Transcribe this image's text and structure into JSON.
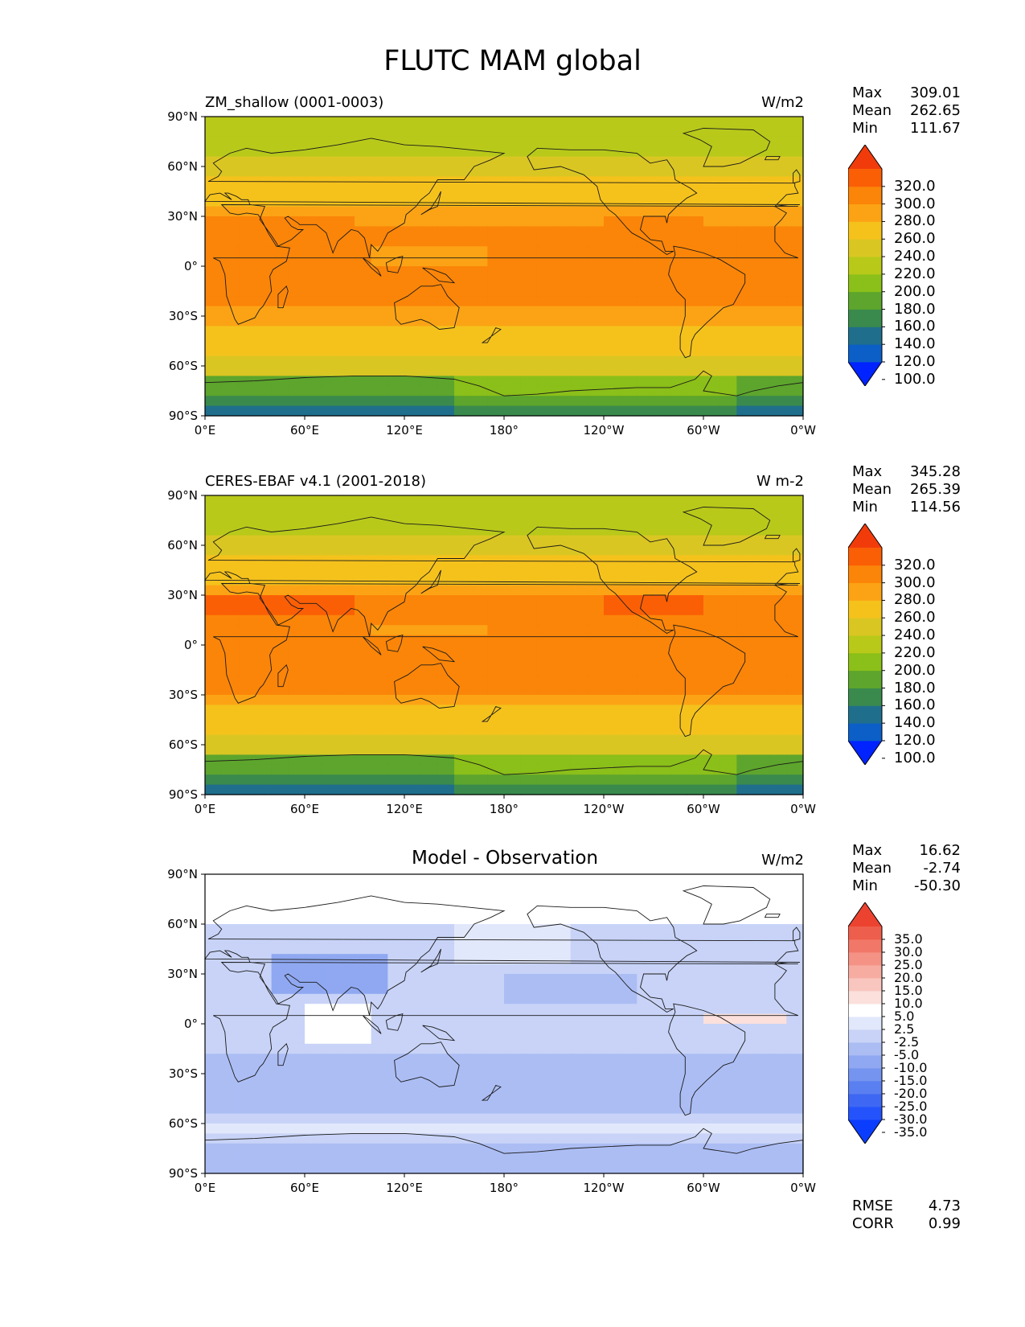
{
  "figure_title": "FLUTC MAM global",
  "axes": {
    "lat_ticks": [
      "90°N",
      "60°N",
      "30°N",
      "0°",
      "30°S",
      "60°S",
      "90°S"
    ],
    "lon_ticks": [
      "0°E",
      "60°E",
      "120°E",
      "180°",
      "120°W",
      "60°W",
      "0°W"
    ]
  },
  "panels": [
    {
      "title": "ZM_shallow (0001-0003)",
      "units": "W/m2",
      "stats": [
        {
          "label": "Max",
          "value": "309.01"
        },
        {
          "label": "Mean",
          "value": "262.65"
        },
        {
          "label": "Min",
          "value": "111.67"
        }
      ],
      "colorbar": {
        "labels": [
          "320.0",
          "300.0",
          "280.0",
          "260.0",
          "240.0",
          "220.0",
          "200.0",
          "180.0",
          "160.0",
          "140.0",
          "120.0",
          "100.0"
        ],
        "colors": [
          "#0023ff",
          "#0b5fc6",
          "#1f6f8c",
          "#3a8a4e",
          "#5da52c",
          "#8bbf19",
          "#b8c91a",
          "#dac623",
          "#f5c21c",
          "#fba315",
          "#fb8508",
          "#fa5f06",
          "#f23b0b"
        ],
        "extend": "both"
      },
      "field": "absolute"
    },
    {
      "title": "CERES-EBAF v4.1 (2001-2018)",
      "units": "W m-2",
      "stats": [
        {
          "label": "Max",
          "value": "345.28"
        },
        {
          "label": "Mean",
          "value": "265.39"
        },
        {
          "label": "Min",
          "value": "114.56"
        }
      ],
      "colorbar": {
        "labels": [
          "320.0",
          "300.0",
          "280.0",
          "260.0",
          "240.0",
          "220.0",
          "200.0",
          "180.0",
          "160.0",
          "140.0",
          "120.0",
          "100.0"
        ],
        "colors": [
          "#0023ff",
          "#0b5fc6",
          "#1f6f8c",
          "#3a8a4e",
          "#5da52c",
          "#8bbf19",
          "#b8c91a",
          "#dac623",
          "#f5c21c",
          "#fba315",
          "#fb8508",
          "#fa5f06",
          "#f23b0b"
        ],
        "extend": "both"
      },
      "field": "absolute"
    },
    {
      "title": "Model - Observation",
      "units": "W/m2",
      "stats": [
        {
          "label": "Max",
          "value": "16.62"
        },
        {
          "label": "Mean",
          "value": "-2.74"
        },
        {
          "label": "Min",
          "value": "-50.30"
        }
      ],
      "extra_stats": [
        {
          "label": "RMSE",
          "value": "4.73"
        },
        {
          "label": "CORR",
          "value": "0.99"
        }
      ],
      "colorbar": {
        "labels": [
          "35.0",
          "30.0",
          "25.0",
          "20.0",
          "15.0",
          "10.0",
          "5.0",
          "2.5",
          "-2.5",
          "-5.0",
          "-10.0",
          "-15.0",
          "-20.0",
          "-25.0",
          "-30.0",
          "-35.0"
        ],
        "colors": [
          "#0b3dff",
          "#2453fb",
          "#3e68f3",
          "#5a7ff0",
          "#7594ef",
          "#8fa8f1",
          "#acbdf4",
          "#c8d3f7",
          "#e2e8fb",
          "#ffffff",
          "#fbe0dc",
          "#f9c6bf",
          "#f7aca2",
          "#f49285",
          "#f17868",
          "#ee5e4c",
          "#eb4330"
        ],
        "extend": "both"
      },
      "field": "difference"
    }
  ]
}
